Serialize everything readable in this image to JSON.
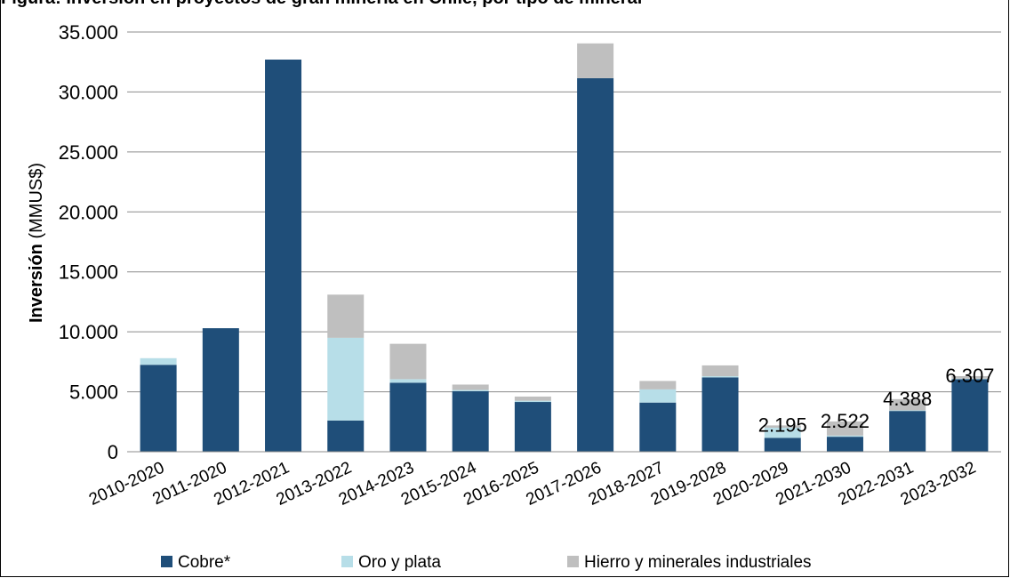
{
  "caption": "Figura: Inversión en proyectos de gran minería en Chile, por tipo de mineral",
  "chart_data": {
    "type": "bar",
    "stacked": true,
    "title": "",
    "xlabel": "",
    "ylabel_bold": "Inversión",
    "ylabel_rest": " (MMUS$)",
    "ylim": [
      0,
      35000
    ],
    "yticks": [
      0,
      5000,
      10000,
      15000,
      20000,
      25000,
      30000,
      35000
    ],
    "ytick_labels": [
      "0",
      "5.000",
      "10.000",
      "15.000",
      "20.000",
      "25.000",
      "30.000",
      "35.000"
    ],
    "grid": true,
    "legend_position": "bottom",
    "categories": [
      "2010-2020",
      "2011-2020",
      "2012-2021",
      "2013-2022",
      "2014-2023",
      "2015-2024",
      "2016-2025",
      "2017-2026",
      "2018-2027",
      "2019-2028",
      "2020-2029",
      "2021-2030",
      "2022-2031",
      "2023-2032"
    ],
    "series": [
      {
        "name": "Cobre*",
        "color": "#1F4E79",
        "values": [
          7250,
          10300,
          32700,
          2600,
          5750,
          5050,
          4150,
          31150,
          4100,
          6200,
          1150,
          1250,
          3400,
          6050
        ]
      },
      {
        "name": "Oro y plata",
        "color": "#B7DEE8",
        "values": [
          550,
          0,
          0,
          6900,
          300,
          100,
          100,
          0,
          1100,
          100,
          850,
          100,
          50,
          50
        ]
      },
      {
        "name": "Hierro y minerales industriales",
        "color": "#BFBFBF",
        "values": [
          0,
          0,
          0,
          3600,
          2950,
          450,
          350,
          2900,
          700,
          900,
          195,
          1172,
          938,
          207
        ]
      }
    ],
    "data_labels": [
      {
        "category": "2020-2029",
        "text": "2.195"
      },
      {
        "category": "2021-2030",
        "text": "2.522"
      },
      {
        "category": "2022-2031",
        "text": "4.388"
      },
      {
        "category": "2023-2032",
        "text": "6.307"
      }
    ]
  }
}
